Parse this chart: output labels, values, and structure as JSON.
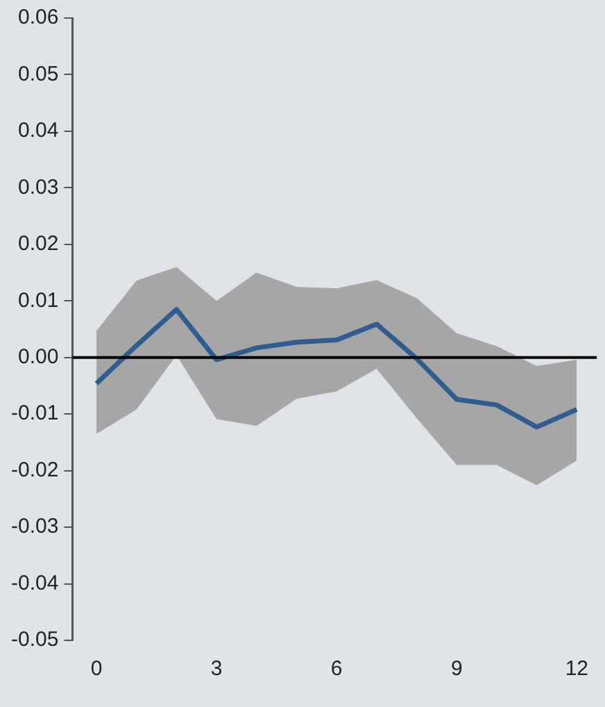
{
  "chart_data": {
    "type": "line",
    "x": [
      0,
      1,
      2,
      3,
      4,
      5,
      6,
      7,
      8,
      9,
      10,
      11,
      12
    ],
    "series": [
      {
        "color": "#2f5d8f",
        "values": [
          -0.0046,
          0.0021,
          0.0085,
          -0.0004,
          0.0017,
          0.0027,
          0.0031,
          0.0059,
          -0.0002,
          -0.0074,
          -0.0084,
          -0.0123,
          -0.0092
        ],
        "lower": [
          -0.0135,
          -0.0092,
          0.0004,
          -0.0109,
          -0.0121,
          -0.0073,
          -0.006,
          -0.002,
          -0.0107,
          -0.019,
          -0.019,
          -0.0226,
          -0.0182
        ],
        "upper": [
          0.0047,
          0.0136,
          0.016,
          0.01,
          0.015,
          0.0125,
          0.0122,
          0.0137,
          0.0105,
          0.0043,
          0.002,
          -0.0015,
          -0.0004
        ]
      }
    ],
    "xlim": [
      -0.6,
      12.5
    ],
    "xticks": [
      0,
      3,
      6,
      9,
      12
    ],
    "ylim": [
      -0.05,
      0.06
    ],
    "yticks": [
      {
        "value": -0.05,
        "label": "-0.05"
      },
      {
        "value": -0.04,
        "label": "-0.04"
      },
      {
        "value": -0.03,
        "label": "-0.03"
      },
      {
        "value": -0.02,
        "label": "-0.02"
      },
      {
        "value": -0.01,
        "label": "-0.01"
      },
      {
        "value": 0,
        "label": "0.00"
      },
      {
        "value": 0.01,
        "label": "0.01"
      },
      {
        "value": 0.02,
        "label": "0.02"
      },
      {
        "value": 0.03,
        "label": "0.03"
      },
      {
        "value": 0.04,
        "label": "0.04"
      },
      {
        "value": 0.05,
        "label": "0.05"
      },
      {
        "value": 0.06,
        "label": "0.06"
      }
    ],
    "ref_lines": [
      {
        "axis": "y",
        "value": 0,
        "color": "#000000"
      }
    ],
    "grid": false,
    "legend": false,
    "marker": "none",
    "line_style": "solid"
  }
}
